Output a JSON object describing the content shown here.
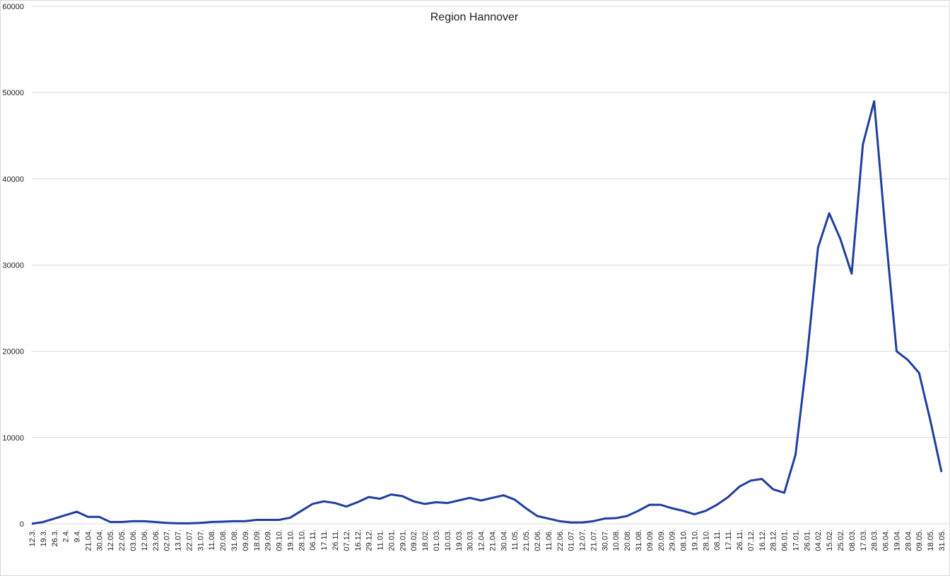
{
  "chart_data": {
    "type": "line",
    "title": "Region Hannover",
    "categories": [
      "12.3.",
      "19.3.",
      "26.3.",
      "2.4.",
      "9.4.",
      "21.04.",
      "30.04.",
      "12.05.",
      "22.05.",
      "03.06.",
      "12.06.",
      "23.06.",
      "02.07.",
      "13.07.",
      "22.07.",
      "31.07.",
      "11.08.",
      "20.08.",
      "31.08.",
      "09.09.",
      "18.09.",
      "29.09.",
      "09.10.",
      "19.10.",
      "28.10.",
      "06.11.",
      "17.11.",
      "26.11.",
      "07.12.",
      "16.12.",
      "29.12.",
      "11.01.",
      "20.01.",
      "29.01.",
      "09.02.",
      "18.02.",
      "01.03.",
      "10.03.",
      "19.03.",
      "30.03.",
      "12.04.",
      "21.04.",
      "30.04.",
      "11.05.",
      "21.05.",
      "02.06.",
      "11.06.",
      "22.06.",
      "01.07.",
      "12.07.",
      "21.07.",
      "30.07.",
      "10.08.",
      "20.08.",
      "31.08.",
      "09.09.",
      "20.09.",
      "29.09.",
      "08.10.",
      "19.10.",
      "28.10.",
      "08.11.",
      "17.11.",
      "26.11.",
      "07.12.",
      "16.12.",
      "28.12.",
      "06.01.",
      "17.01.",
      "26.01.",
      "04.02.",
      "15.02.",
      "25.02.",
      "08.03.",
      "17.03.",
      "28.03.",
      "06.04.",
      "19.04.",
      "28.04.",
      "09.05.",
      "18.05.",
      "31.05."
    ],
    "series": [
      {
        "color": "#1f3f9f",
        "values": [
          0,
          200,
          600,
          1000,
          1400,
          800,
          800,
          200,
          200,
          300,
          300,
          200,
          100,
          50,
          50,
          100,
          200,
          250,
          300,
          300,
          450,
          450,
          450,
          700,
          1500,
          2300,
          2600,
          2400,
          2000,
          2500,
          3100,
          2900,
          3400,
          3200,
          2600,
          2300,
          2500,
          2400,
          2700,
          3000,
          2700,
          3000,
          3300,
          2800,
          1800,
          900,
          600,
          300,
          150,
          150,
          300,
          600,
          650,
          900,
          1500,
          2200,
          2200,
          1800,
          1500,
          1100,
          1500,
          2200,
          3100,
          4300,
          5000,
          5200,
          4000,
          3600,
          8000,
          19000,
          32000,
          36000,
          33000,
          29000,
          44000,
          49000,
          34000,
          20000,
          19000,
          17500,
          12000,
          6000
        ]
      }
    ],
    "ylim": [
      0,
      60000
    ],
    "yticks": [
      0,
      10000,
      20000,
      30000,
      40000,
      50000,
      60000
    ],
    "grid": true
  }
}
